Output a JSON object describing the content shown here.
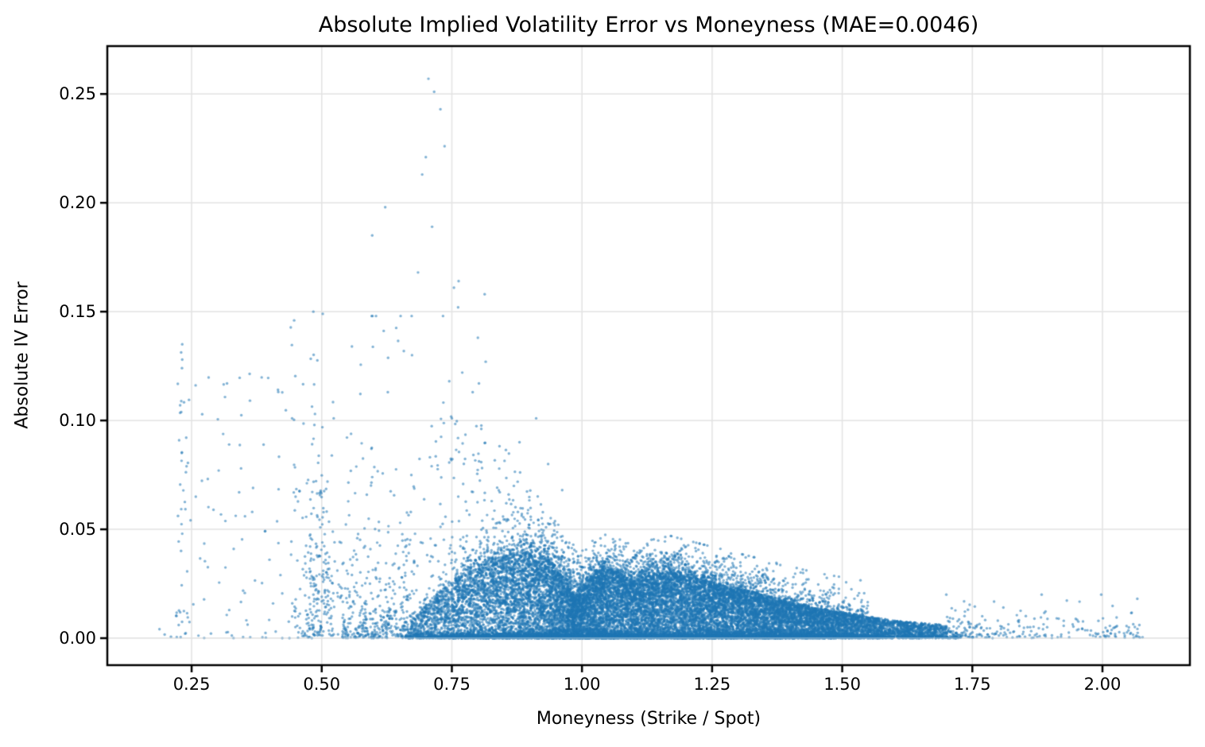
{
  "chart_data": {
    "type": "scatter",
    "title": "Absolute Implied Volatility Error vs Moneyness (MAE=0.0046)",
    "mae": 0.0046,
    "xlabel": "Moneyness (Strike / Spot)",
    "ylabel": "Absolute IV Error",
    "xlim": [
      0.088,
      2.168
    ],
    "ylim": [
      -0.0124,
      0.272
    ],
    "xticks": [
      {
        "v": 0.25,
        "label": "0.25"
      },
      {
        "v": 0.5,
        "label": "0.50"
      },
      {
        "v": 0.75,
        "label": "0.75"
      },
      {
        "v": 1.0,
        "label": "1.00"
      },
      {
        "v": 1.25,
        "label": "1.25"
      },
      {
        "v": 1.5,
        "label": "1.50"
      },
      {
        "v": 1.75,
        "label": "1.75"
      },
      {
        "v": 2.0,
        "label": "2.00"
      }
    ],
    "yticks": [
      {
        "v": 0.0,
        "label": "0.00"
      },
      {
        "v": 0.05,
        "label": "0.05"
      },
      {
        "v": 0.1,
        "label": "0.10"
      },
      {
        "v": 0.15,
        "label": "0.15"
      },
      {
        "v": 0.2,
        "label": "0.20"
      },
      {
        "v": 0.25,
        "label": "0.25"
      }
    ],
    "grid": true,
    "grid_color": "#e3e3e3",
    "spine_color": "#000000",
    "background": "#ffffff",
    "marker": {
      "color": "#1f77b4",
      "alpha": 0.55,
      "radius_px": 1.7
    },
    "seed": 1337,
    "solid_envelope": [
      [
        0.67,
        0.008
      ],
      [
        0.72,
        0.02
      ],
      [
        0.78,
        0.032
      ],
      [
        0.85,
        0.038
      ],
      [
        0.9,
        0.04
      ],
      [
        0.94,
        0.036
      ],
      [
        0.97,
        0.028
      ],
      [
        0.985,
        0.019
      ],
      [
        1.0,
        0.024
      ],
      [
        1.03,
        0.031
      ],
      [
        1.06,
        0.032
      ],
      [
        1.1,
        0.026
      ],
      [
        1.13,
        0.029
      ],
      [
        1.17,
        0.031
      ],
      [
        1.2,
        0.029
      ],
      [
        1.25,
        0.026
      ],
      [
        1.3,
        0.023
      ],
      [
        1.35,
        0.02
      ],
      [
        1.4,
        0.017
      ],
      [
        1.45,
        0.014
      ],
      [
        1.5,
        0.012
      ],
      [
        1.55,
        0.01
      ],
      [
        1.6,
        0.008
      ],
      [
        1.65,
        0.007
      ],
      [
        1.7,
        0.006
      ]
    ],
    "upper_envelope": [
      [
        0.65,
        0.045
      ],
      [
        0.68,
        0.075
      ],
      [
        0.7,
        0.095
      ],
      [
        0.73,
        0.11
      ],
      [
        0.76,
        0.105
      ],
      [
        0.8,
        0.1
      ],
      [
        0.84,
        0.092
      ],
      [
        0.88,
        0.08
      ],
      [
        0.92,
        0.065
      ],
      [
        0.96,
        0.05
      ],
      [
        1.0,
        0.038
      ],
      [
        1.05,
        0.034
      ]
    ],
    "x_density": [
      [
        0.67,
        0.15
      ],
      [
        0.72,
        0.35
      ],
      [
        0.8,
        0.55
      ],
      [
        0.88,
        0.75
      ],
      [
        0.95,
        0.9
      ],
      [
        1.0,
        1.0
      ],
      [
        1.1,
        1.0
      ],
      [
        1.2,
        0.95
      ],
      [
        1.3,
        0.85
      ],
      [
        1.4,
        0.7
      ],
      [
        1.5,
        0.5
      ],
      [
        1.6,
        0.3
      ],
      [
        1.7,
        0.15
      ]
    ],
    "clusters": [
      {
        "name": "dense-wedge",
        "kind": "under_solid_envelope",
        "count": 15000,
        "x_range": [
          0.67,
          1.7
        ],
        "y_pow": 0.8
      },
      {
        "name": "baseline-band",
        "kind": "baseline",
        "count": 7000,
        "x_range": [
          0.66,
          1.73
        ],
        "y_exp_scale": 0.0009,
        "y_cap": 0.004
      },
      {
        "name": "envelope-fringe",
        "kind": "fringe",
        "count": 1300,
        "x_range": [
          0.68,
          1.55
        ],
        "y_exp_scale": 0.005,
        "y_cap": 0.016
      },
      {
        "name": "upper-scatter",
        "kind": "under_upper_envelope",
        "count": 950,
        "x_range": [
          0.65,
          1.05
        ],
        "y_pow": 1.8
      },
      {
        "name": "mid-scatter",
        "kind": "box",
        "count": 300,
        "x_range": [
          0.44,
          0.68
        ],
        "y_exp_scale": 0.035,
        "y_cap": 0.148
      },
      {
        "name": "mid-baseline",
        "kind": "box",
        "count": 260,
        "x_range": [
          0.54,
          0.68
        ],
        "y_exp_scale": 0.006,
        "y_cap": 0.03
      },
      {
        "name": "column-049",
        "kind": "gauss_col",
        "count": 160,
        "x_mean": 0.492,
        "x_sd": 0.014,
        "y_exp_scale": 0.03,
        "y_cap": 0.15
      },
      {
        "name": "left-scatter",
        "kind": "box_pow",
        "count": 95,
        "x_range": [
          0.22,
          0.46
        ],
        "y_pow": 2.0,
        "y_max": 0.122
      },
      {
        "name": "column-023",
        "kind": "gauss_col_uniform",
        "count": 26,
        "x_mean": 0.232,
        "x_sd": 0.006,
        "y_max": 0.136
      },
      {
        "name": "far-left-low",
        "kind": "box",
        "count": 8,
        "x_range": [
          0.18,
          0.27
        ],
        "y_exp_scale": 0.004,
        "y_cap": 0.012
      },
      {
        "name": "right-tail",
        "kind": "tail",
        "count": 240,
        "x_range": [
          1.7,
          2.08
        ],
        "x_pow": 1.6,
        "y_exp_scale": 0.0045,
        "y_cap": 0.02
      }
    ],
    "streaks": {
      "count": 24,
      "x_range": [
        1.03,
        1.34
      ],
      "points_min": 5,
      "points_max": 10,
      "dx": 0.0045,
      "dy": 0.0012,
      "jitter": 0.0009
    },
    "outliers": [
      [
        0.705,
        0.257
      ],
      [
        0.716,
        0.251
      ],
      [
        0.728,
        0.243
      ],
      [
        0.736,
        0.226
      ],
      [
        0.7,
        0.221
      ],
      [
        0.693,
        0.213
      ],
      [
        0.712,
        0.189
      ],
      [
        0.622,
        0.198
      ],
      [
        0.597,
        0.185
      ],
      [
        0.685,
        0.168
      ],
      [
        0.763,
        0.164
      ],
      [
        0.754,
        0.161
      ],
      [
        0.813,
        0.158
      ],
      [
        0.762,
        0.152
      ],
      [
        0.502,
        0.149
      ],
      [
        0.733,
        0.148
      ],
      [
        0.447,
        0.146
      ],
      [
        0.8,
        0.138
      ],
      [
        0.232,
        0.135
      ],
      [
        0.558,
        0.134
      ],
      [
        0.232,
        0.128
      ],
      [
        0.815,
        0.127
      ],
      [
        0.77,
        0.122
      ],
      [
        0.745,
        0.118
      ],
      [
        0.318,
        0.117
      ],
      [
        0.802,
        0.117
      ],
      [
        0.627,
        0.113
      ],
      [
        0.79,
        0.113
      ],
      [
        0.228,
        0.107
      ],
      [
        0.487,
        0.103
      ],
      [
        0.443,
        0.101
      ],
      [
        0.523,
        0.101
      ],
      [
        0.75,
        0.101
      ],
      [
        0.912,
        0.101
      ],
      [
        0.88,
        0.09
      ],
      [
        0.935,
        0.08
      ],
      [
        0.962,
        0.068
      ],
      [
        0.345,
        0.078
      ],
      [
        0.302,
        0.077
      ],
      [
        0.368,
        0.069
      ],
      [
        0.258,
        0.065
      ],
      [
        0.292,
        0.059
      ]
    ]
  }
}
